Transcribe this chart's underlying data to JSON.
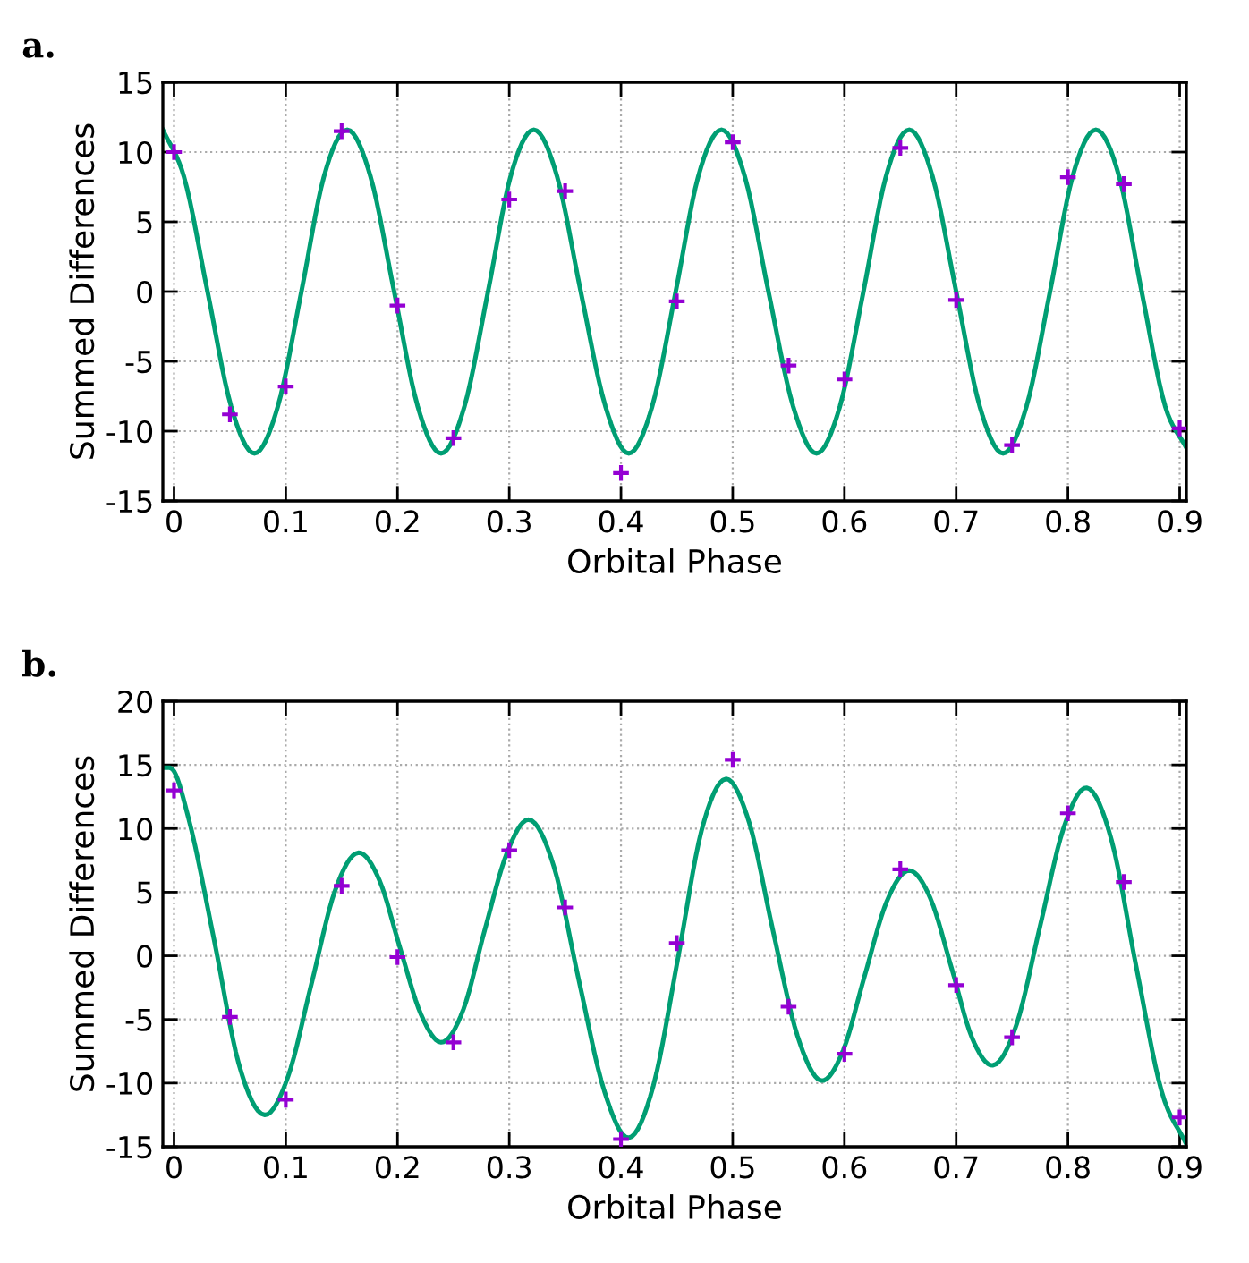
{
  "chart_data": [
    {
      "type": "line",
      "title": "a.",
      "xlabel": "Orbital Phase",
      "ylabel": "Summed Differences",
      "xlim": [
        -0.01,
        0.906
      ],
      "xticks": [
        0,
        0.1,
        0.2,
        0.3,
        0.4,
        0.5,
        0.6,
        0.7,
        0.8,
        0.9
      ],
      "ylim": [
        -15,
        15
      ],
      "yticks": [
        -15,
        -10,
        -5,
        0,
        5,
        10,
        15
      ],
      "grid": true,
      "series": [
        {
          "color": "#009e73",
          "marker": "none",
          "line_style": "solid",
          "x": [
            -0.01,
            0.009,
            0.03,
            0.051,
            0.072,
            0.093,
            0.114,
            0.134,
            0.155,
            0.176,
            0.197,
            0.218,
            0.239,
            0.26,
            0.281,
            0.301,
            0.322,
            0.343,
            0.364,
            0.386,
            0.407,
            0.428,
            0.449,
            0.469,
            0.49,
            0.511,
            0.532,
            0.554,
            0.575,
            0.596,
            0.617,
            0.637,
            0.658,
            0.679,
            0.7,
            0.721,
            0.742,
            0.763,
            0.784,
            0.804,
            0.825,
            0.846,
            0.866,
            0.887,
            0.906
          ],
          "values": [
            11.6,
            8.2,
            0,
            -8.2,
            -11.6,
            -8.2,
            0,
            8.2,
            11.6,
            8.2,
            0,
            -8.2,
            -11.6,
            -8.2,
            0,
            8.2,
            11.6,
            8.2,
            0,
            -8.2,
            -11.6,
            -8.2,
            0,
            8.2,
            11.6,
            8.2,
            0,
            -8.2,
            -11.6,
            -8.2,
            0,
            8.2,
            11.6,
            8.2,
            0,
            -8.2,
            -11.6,
            -8.2,
            0,
            8.2,
            11.6,
            8.2,
            0,
            -8.2,
            -11.2
          ]
        },
        {
          "type": "scatter",
          "color": "#9400d3",
          "marker": "cross",
          "x": [
            0,
            0.05,
            0.1,
            0.15,
            0.2,
            0.25,
            0.3,
            0.35,
            0.4,
            0.45,
            0.5,
            0.55,
            0.6,
            0.65,
            0.7,
            0.75,
            0.8,
            0.85,
            0.9
          ],
          "values": [
            10.0,
            -8.8,
            -6.8,
            11.5,
            -1.0,
            -10.5,
            6.6,
            7.2,
            -13.0,
            -0.7,
            10.7,
            -5.3,
            -6.3,
            10.3,
            -0.6,
            -11.0,
            8.2,
            7.7,
            -9.8
          ]
        }
      ]
    },
    {
      "type": "line",
      "title": "b.",
      "xlabel": "Orbital Phase",
      "ylabel": "Summed Differences",
      "xlim": [
        -0.01,
        0.906
      ],
      "xticks": [
        0,
        0.1,
        0.2,
        0.3,
        0.4,
        0.5,
        0.6,
        0.7,
        0.8,
        0.9
      ],
      "ylim": [
        -15,
        20
      ],
      "yticks": [
        -15,
        -10,
        -5,
        0,
        5,
        10,
        15,
        20
      ],
      "grid": true,
      "series": [
        {
          "color": "#009e73",
          "marker": "none",
          "line_style": "solid",
          "x": [
            -0.01,
            0.0,
            0.013,
            0.036,
            0.058,
            0.081,
            0.102,
            0.123,
            0.144,
            0.165,
            0.184,
            0.202,
            0.221,
            0.239,
            0.259,
            0.278,
            0.298,
            0.317,
            0.34,
            0.362,
            0.385,
            0.407,
            0.429,
            0.451,
            0.472,
            0.494,
            0.515,
            0.536,
            0.558,
            0.579,
            0.599,
            0.618,
            0.638,
            0.658,
            0.677,
            0.696,
            0.714,
            0.733,
            0.754,
            0.775,
            0.796,
            0.817,
            0.839,
            0.861,
            0.884,
            0.906
          ],
          "values": [
            14.8,
            14.5,
            10.8,
            1.2,
            -8.5,
            -12.5,
            -9.5,
            -2.2,
            5.1,
            8.1,
            5.9,
            0.7,
            -4.6,
            -6.8,
            -4.2,
            2.0,
            8.1,
            10.7,
            7.0,
            -1.8,
            -10.6,
            -14.3,
            -10.2,
            -0.2,
            9.8,
            13.9,
            10.4,
            2.0,
            -6.3,
            -9.8,
            -7.4,
            -1.6,
            4.3,
            6.7,
            4.5,
            -1.0,
            -6.4,
            -8.6,
            -5.4,
            2.3,
            10.0,
            13.2,
            9.1,
            -0.8,
            -10.7,
            -14.8
          ]
        },
        {
          "type": "scatter",
          "color": "#9400d3",
          "marker": "cross",
          "x": [
            0,
            0.05,
            0.1,
            0.15,
            0.2,
            0.25,
            0.3,
            0.35,
            0.4,
            0.45,
            0.5,
            0.55,
            0.6,
            0.65,
            0.7,
            0.75,
            0.8,
            0.85,
            0.9
          ],
          "values": [
            13.0,
            -4.8,
            -11.3,
            5.5,
            -0.1,
            -6.8,
            8.3,
            3.8,
            -14.4,
            1.0,
            15.4,
            -4.0,
            -7.7,
            6.8,
            -2.3,
            -6.4,
            11.2,
            5.8,
            -12.7
          ]
        }
      ]
    }
  ]
}
